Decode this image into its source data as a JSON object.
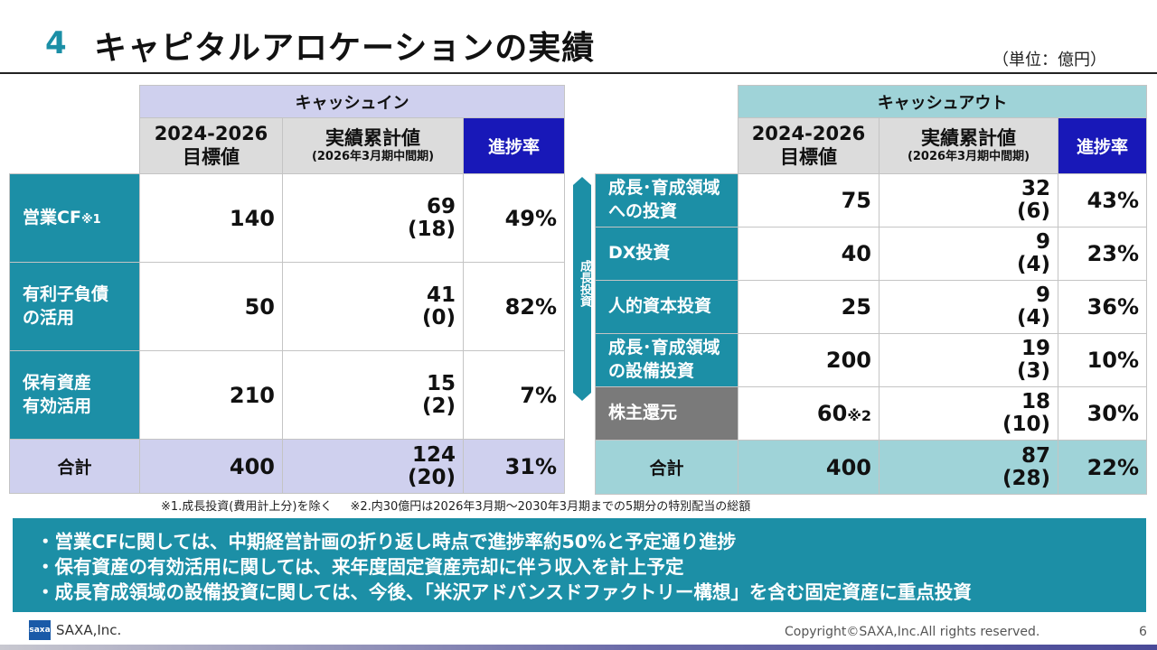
{
  "header": {
    "section_number": "4",
    "title": "キャピタルアロケーションの実績",
    "unit": "（単位：億円）"
  },
  "cash_in": {
    "heading": "キャッシュイン",
    "col_target": [
      "2024-2026",
      "目標値"
    ],
    "col_actual": "実績累計値",
    "col_actual_sub": "(2026年3月期中間期)",
    "col_rate": "進捗率",
    "rows": [
      {
        "label": [
          "営業CF",
          "※1"
        ],
        "target": "140",
        "actual": "69",
        "actual_sub": "(18)",
        "rate": "49%"
      },
      {
        "label": [
          "有利子負債",
          "の活用"
        ],
        "target": "50",
        "actual": "41",
        "actual_sub": "(0)",
        "rate": "82%"
      },
      {
        "label": [
          "保有資産",
          "有効活用"
        ],
        "target": "210",
        "actual": "15",
        "actual_sub": "(2)",
        "rate": "7%"
      }
    ],
    "total": {
      "label": "合計",
      "target": "400",
      "actual": "124",
      "actual_sub": "(20)",
      "rate": "31%"
    }
  },
  "growth_label": "成長投資",
  "cash_out": {
    "heading": "キャッシュアウト",
    "col_target": [
      "2024-2026",
      "目標値"
    ],
    "col_actual": "実績累計値",
    "col_actual_sub": "(2026年3月期中間期)",
    "col_rate": "進捗率",
    "rows": [
      {
        "label": [
          "成長･育成領域",
          "への投資"
        ],
        "target": "75",
        "target_note": "",
        "actual": "32",
        "actual_sub": "(6)",
        "rate": "43%"
      },
      {
        "label": [
          "DX投資",
          ""
        ],
        "target": "40",
        "target_note": "",
        "actual": "9",
        "actual_sub": "(4)",
        "rate": "23%"
      },
      {
        "label": [
          "人的資本投資",
          ""
        ],
        "target": "25",
        "target_note": "",
        "actual": "9",
        "actual_sub": "(4)",
        "rate": "36%"
      },
      {
        "label": [
          "成長･育成領域",
          "の設備投資"
        ],
        "target": "200",
        "target_note": "",
        "actual": "19",
        "actual_sub": "(3)",
        "rate": "10%"
      },
      {
        "label": [
          "株主還元",
          ""
        ],
        "target": "60",
        "target_note": "※2",
        "actual": "18",
        "actual_sub": "(10)",
        "rate": "30%"
      }
    ],
    "total": {
      "label": "合計",
      "target": "400",
      "actual": "87",
      "actual_sub": "(28)",
      "rate": "22%"
    }
  },
  "footnotes": {
    "note1": "※1.成長投資(費用計上分)を除く",
    "note2": "※2.内30億円は2026年3月期～2030年3月期までの5期分の特別配当の総額"
  },
  "summary": [
    "・営業CFに関しては、中期経営計画の折り返し時点で進捗率約50%と予定通り進捗",
    "・保有資産の有効活用に関しては、来年度固定資産売却に伴う収入を計上予定",
    "・成長育成領域の設備投資に関しては、今後、「米沢アドバンスドファクトリー構想」を含む固定資産に重点投資"
  ],
  "footer": {
    "logo_text": "saxa",
    "company": "SAXA,Inc.",
    "copyright": "Copyright©SAXA,Inc.All rights reserved.",
    "page_number": "6"
  },
  "colors": {
    "teal": "#1c8fa6",
    "lavender": "#cfd0ee",
    "light_teal": "#9fd3d8",
    "rate_blue": "#1818b8"
  }
}
